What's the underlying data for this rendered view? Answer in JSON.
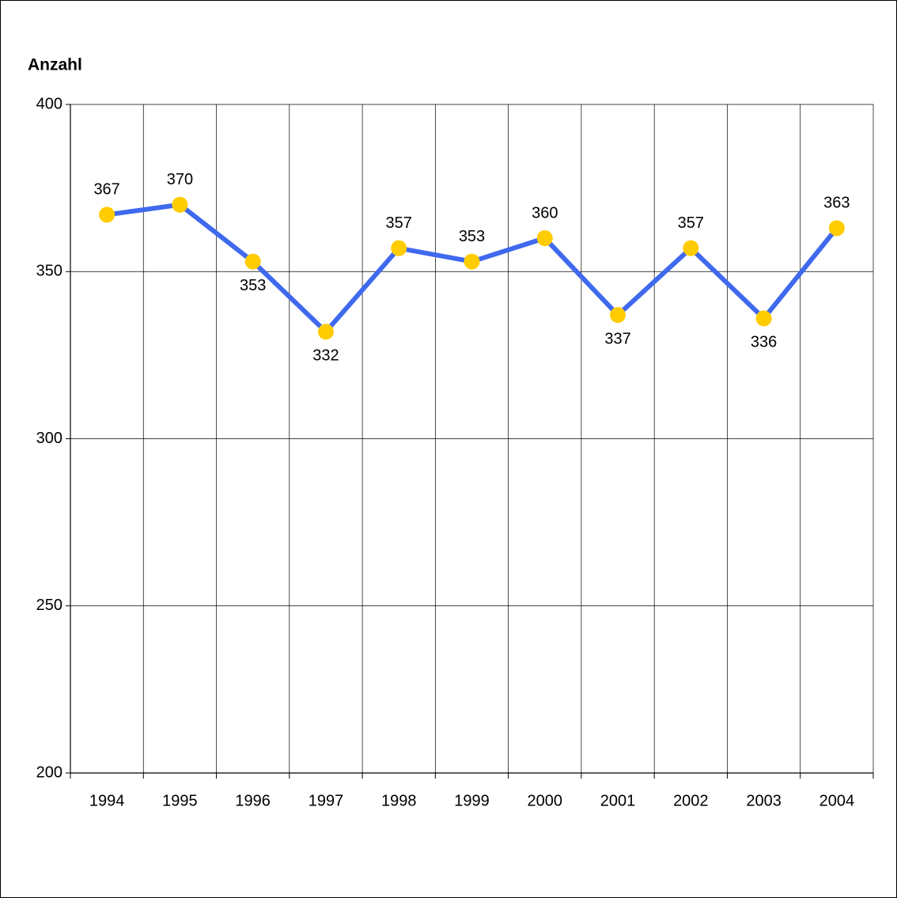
{
  "chart_data": {
    "type": "line",
    "title": "Anzahl",
    "categories": [
      "1994",
      "1995",
      "1996",
      "1997",
      "1998",
      "1999",
      "2000",
      "2001",
      "2002",
      "2003",
      "2004"
    ],
    "values": [
      367,
      370,
      353,
      332,
      357,
      353,
      360,
      337,
      357,
      336,
      363
    ],
    "color": "#3f69ee",
    "marker_color": "#ffcc00",
    "ylim": [
      200,
      400
    ],
    "yticks": [
      200,
      250,
      300,
      350,
      400
    ],
    "grid": true
  }
}
